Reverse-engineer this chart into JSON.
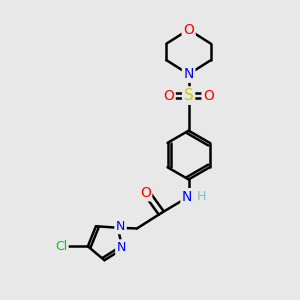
{
  "bg_color": "#e8e8e8",
  "bond_color": "#000000",
  "atom_colors": {
    "O": "#ff0000",
    "N": "#0000ff",
    "S": "#cccc00",
    "Cl": "#00cc00",
    "C": "#000000",
    "H": "#7fbfbf"
  },
  "bond_width": 1.8,
  "fig_size": [
    3.0,
    3.0
  ],
  "dpi": 100,
  "xlim": [
    0,
    10
  ],
  "ylim": [
    0,
    10
  ]
}
